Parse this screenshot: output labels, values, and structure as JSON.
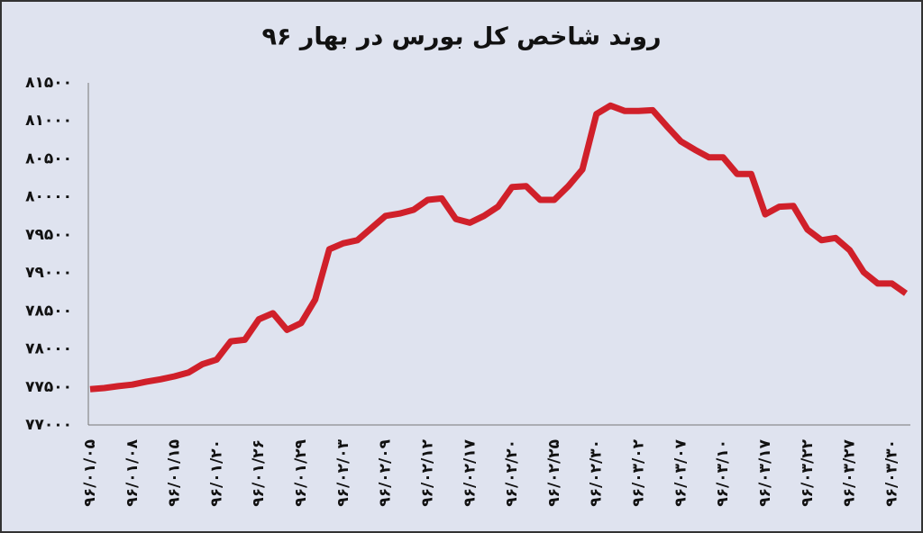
{
  "chart_data": {
    "type": "line",
    "title": "روند شاخص کل بورس در بهار ۹۶",
    "categories": [
      "۹۶/۰۱/۰۵",
      null,
      null,
      "۹۶/۰۱/۰۸",
      null,
      null,
      "۹۶/۰۱/۱۵",
      null,
      null,
      "۹۶/۰۱/۲۰",
      null,
      null,
      "۹۶/۰۱/۲۶",
      null,
      null,
      "۹۶/۰۱/۲۹",
      null,
      null,
      "۹۶/۰۲/۰۳",
      null,
      null,
      "۹۶/۰۲/۰۹",
      null,
      null,
      "۹۶/۰۲/۱۲",
      null,
      null,
      "۹۶/۰۲/۱۷",
      null,
      null,
      "۹۶/۰۲/۲۰",
      null,
      null,
      "۹۶/۰۲/۲۵",
      null,
      null,
      "۹۶/۰۲/۳۰",
      null,
      null,
      "۹۶/۰۳/۰۲",
      null,
      null,
      "۹۶/۰۳/۰۷",
      null,
      null,
      "۹۶/۰۳/۱۰",
      null,
      null,
      "۹۶/۰۳/۱۷",
      null,
      null,
      "۹۶/۰۳/۲۲",
      null,
      null,
      "۹۶/۰۳/۲۷",
      null,
      null,
      "۹۶/۰۳/۳۰",
      null
    ],
    "values": [
      77470,
      77485,
      77510,
      77530,
      77570,
      77600,
      77640,
      77690,
      77800,
      77860,
      78100,
      78120,
      78390,
      78470,
      78250,
      78340,
      78650,
      79310,
      79390,
      79430,
      79590,
      79750,
      79780,
      79830,
      79960,
      79980,
      79710,
      79660,
      79750,
      79870,
      80130,
      80140,
      79960,
      79960,
      80140,
      80360,
      81090,
      81200,
      81130,
      81130,
      81140,
      80930,
      80730,
      80620,
      80520,
      80520,
      80300,
      80300,
      79770,
      79870,
      79880,
      79570,
      79430,
      79460,
      79300,
      79010,
      78860,
      78860,
      78730
    ],
    "color": "#d0202a",
    "ylim": [
      77000,
      81500
    ],
    "yticks": [
      {
        "value": 77000,
        "label": "۷۷۰۰۰"
      },
      {
        "value": 77500,
        "label": "۷۷۵۰۰"
      },
      {
        "value": 78000,
        "label": "۷۸۰۰۰"
      },
      {
        "value": 78500,
        "label": "۷۸۵۰۰"
      },
      {
        "value": 79000,
        "label": "۷۹۰۰۰"
      },
      {
        "value": 79500,
        "label": "۷۹۵۰۰"
      },
      {
        "value": 80000,
        "label": "۸۰۰۰۰"
      },
      {
        "value": 80500,
        "label": "۸۰۵۰۰"
      },
      {
        "value": 81000,
        "label": "۸۱۰۰۰"
      },
      {
        "value": 81500,
        "label": "۸۱۵۰۰"
      }
    ],
    "grid": false
  }
}
